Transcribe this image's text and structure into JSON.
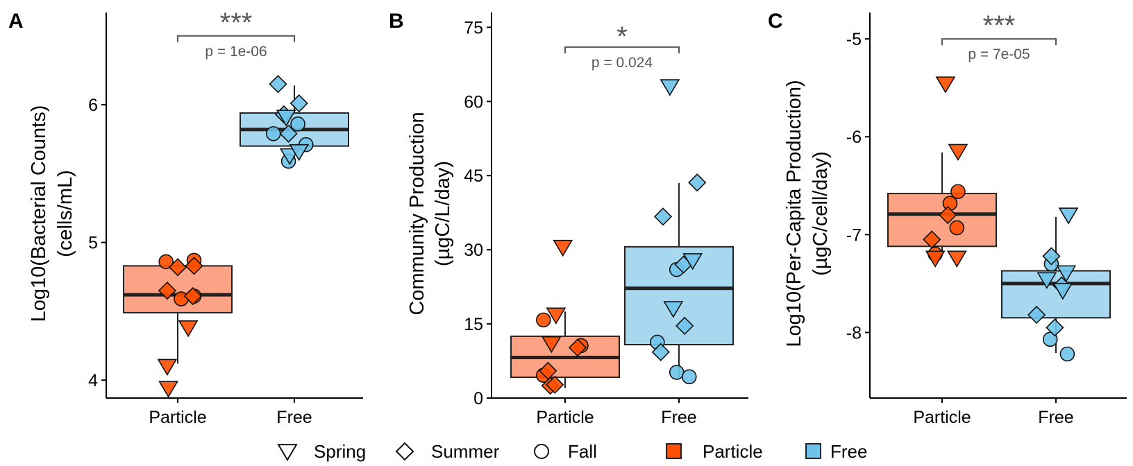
{
  "chart_data": [
    {
      "panel": "A",
      "type": "box",
      "ylabel": [
        "Log10(Bacterial Counts)",
        "(cells/mL)"
      ],
      "ylim": [
        3.87,
        6.67
      ],
      "yticks": [
        4,
        5,
        6
      ],
      "ytick_labels": [
        "4",
        "5",
        "6"
      ],
      "categories": [
        "Particle",
        "Free"
      ],
      "boxes": [
        {
          "category": "Particle",
          "min": 4.12,
          "q1": 4.49,
          "median": 4.62,
          "q3": 4.83,
          "max": 4.86,
          "color": "#FCA285"
        },
        {
          "category": "Free",
          "min": 5.6,
          "q1": 5.7,
          "median": 5.82,
          "q3": 5.94,
          "max": 6.14,
          "color": "#A8D8EF"
        }
      ],
      "points": [
        {
          "category": "Particle",
          "jitter": -0.1,
          "value": 4.86,
          "shape": "circle"
        },
        {
          "category": "Particle",
          "jitter": 0.14,
          "value": 4.87,
          "shape": "circle"
        },
        {
          "category": "Particle",
          "jitter": 0.03,
          "value": 4.59,
          "shape": "circle"
        },
        {
          "category": "Particle",
          "jitter": 0.14,
          "value": 4.61,
          "shape": "circle"
        },
        {
          "category": "Particle",
          "jitter": -0.09,
          "value": 4.65,
          "shape": "diamond"
        },
        {
          "category": "Particle",
          "jitter": 0.0,
          "value": 4.82,
          "shape": "diamond"
        },
        {
          "category": "Particle",
          "jitter": 0.14,
          "value": 4.83,
          "shape": "diamond"
        },
        {
          "category": "Particle",
          "jitter": 0.13,
          "value": 4.61,
          "shape": "diamond"
        },
        {
          "category": "Particle",
          "jitter": 0.09,
          "value": 4.38,
          "shape": "triangle"
        },
        {
          "category": "Particle",
          "jitter": -0.09,
          "value": 4.1,
          "shape": "triangle"
        },
        {
          "category": "Particle",
          "jitter": -0.08,
          "value": 3.94,
          "shape": "triangle"
        },
        {
          "category": "Free",
          "jitter": -0.18,
          "value": 5.79,
          "shape": "circle"
        },
        {
          "category": "Free",
          "jitter": 0.03,
          "value": 5.86,
          "shape": "circle"
        },
        {
          "category": "Free",
          "jitter": 0.1,
          "value": 5.71,
          "shape": "circle"
        },
        {
          "category": "Free",
          "jitter": -0.05,
          "value": 5.59,
          "shape": "circle"
        },
        {
          "category": "Free",
          "jitter": -0.14,
          "value": 6.15,
          "shape": "diamond"
        },
        {
          "category": "Free",
          "jitter": 0.04,
          "value": 6.01,
          "shape": "diamond"
        },
        {
          "category": "Free",
          "jitter": -0.05,
          "value": 5.79,
          "shape": "diamond"
        },
        {
          "category": "Free",
          "jitter": -0.09,
          "value": 5.93,
          "shape": "diamond"
        },
        {
          "category": "Free",
          "jitter": -0.07,
          "value": 5.91,
          "shape": "triangle"
        },
        {
          "category": "Free",
          "jitter": -0.04,
          "value": 5.63,
          "shape": "triangle"
        },
        {
          "category": "Free",
          "jitter": 0.04,
          "value": 5.66,
          "shape": "triangle"
        }
      ],
      "annotation": {
        "stars": "***",
        "p": "p = 1e-06",
        "y": 6.5
      }
    },
    {
      "panel": "B",
      "type": "box",
      "ylabel": [
        "Community Production",
        "(µgC/L/day)"
      ],
      "ylim": [
        0,
        78
      ],
      "yticks": [
        0,
        15,
        30,
        45,
        60,
        75
      ],
      "ytick_labels": [
        "0",
        "15",
        "30",
        "45",
        "60",
        "75"
      ],
      "categories": [
        "Particle",
        "Free"
      ],
      "boxes": [
        {
          "category": "Particle",
          "min": 2,
          "q1": 4.2,
          "median": 8.2,
          "q3": 12.5,
          "max": 17.5,
          "color": "#FCA285"
        },
        {
          "category": "Free",
          "min": 4.2,
          "q1": 10.8,
          "median": 22.2,
          "q3": 30.6,
          "max": 43.5,
          "color": "#A8D8EF"
        }
      ],
      "points": [
        {
          "category": "Particle",
          "jitter": -0.19,
          "value": 15.8,
          "shape": "circle"
        },
        {
          "category": "Particle",
          "jitter": 0.14,
          "value": 10.6,
          "shape": "circle"
        },
        {
          "category": "Particle",
          "jitter": -0.19,
          "value": 4.6,
          "shape": "circle"
        },
        {
          "category": "Particle",
          "jitter": -0.15,
          "value": 5.5,
          "shape": "diamond"
        },
        {
          "category": "Particle",
          "jitter": -0.13,
          "value": 2.5,
          "shape": "diamond"
        },
        {
          "category": "Particle",
          "jitter": -0.09,
          "value": 2.7,
          "shape": "diamond"
        },
        {
          "category": "Particle",
          "jitter": 0.11,
          "value": 10.2,
          "shape": "diamond"
        },
        {
          "category": "Particle",
          "jitter": -0.02,
          "value": 30.5,
          "shape": "triangle"
        },
        {
          "category": "Particle",
          "jitter": -0.08,
          "value": 16.8,
          "shape": "triangle"
        },
        {
          "category": "Particle",
          "jitter": -0.12,
          "value": 11.0,
          "shape": "triangle"
        },
        {
          "category": "Free",
          "jitter": -0.19,
          "value": 11.3,
          "shape": "circle"
        },
        {
          "category": "Free",
          "jitter": -0.02,
          "value": 26.0,
          "shape": "circle"
        },
        {
          "category": "Free",
          "jitter": -0.02,
          "value": 5.2,
          "shape": "circle"
        },
        {
          "category": "Free",
          "jitter": 0.09,
          "value": 4.3,
          "shape": "circle"
        },
        {
          "category": "Free",
          "jitter": -0.14,
          "value": 36.7,
          "shape": "diamond"
        },
        {
          "category": "Free",
          "jitter": 0.16,
          "value": 43.6,
          "shape": "diamond"
        },
        {
          "category": "Free",
          "jitter": 0.05,
          "value": 14.6,
          "shape": "diamond"
        },
        {
          "category": "Free",
          "jitter": -0.16,
          "value": 9.3,
          "shape": "diamond"
        },
        {
          "category": "Free",
          "jitter": 0.04,
          "value": 27.0,
          "shape": "diamond"
        },
        {
          "category": "Free",
          "jitter": -0.08,
          "value": 63.0,
          "shape": "triangle"
        },
        {
          "category": "Free",
          "jitter": 0.12,
          "value": 27.8,
          "shape": "triangle"
        },
        {
          "category": "Free",
          "jitter": -0.05,
          "value": 18.1,
          "shape": "triangle"
        }
      ],
      "annotation": {
        "stars": "*",
        "p": "p = 0.024",
        "y": 71
      }
    },
    {
      "panel": "C",
      "type": "box",
      "ylabel": [
        "Log10(Per-Capita Production)",
        "(µgC/cell/day)"
      ],
      "ylim": [
        -8.67,
        -4.73
      ],
      "yticks": [
        -8,
        -7,
        -6,
        -5
      ],
      "ytick_labels": [
        "-8",
        "-7",
        "-6",
        "-5"
      ],
      "categories": [
        "Particle",
        "Free"
      ],
      "boxes": [
        {
          "category": "Particle",
          "min": -7.2,
          "q1": -7.12,
          "median": -6.79,
          "q3": -6.58,
          "max": -6.16,
          "color": "#FCA285"
        },
        {
          "category": "Free",
          "min": -8.21,
          "q1": -7.85,
          "median": -7.5,
          "q3": -7.37,
          "max": -6.82,
          "color": "#A8D8EF"
        }
      ],
      "points": [
        {
          "category": "Particle",
          "jitter": 0.07,
          "value": -6.68,
          "shape": "circle"
        },
        {
          "category": "Particle",
          "jitter": 0.14,
          "value": -6.56,
          "shape": "circle"
        },
        {
          "category": "Particle",
          "jitter": 0.13,
          "value": -6.93,
          "shape": "circle"
        },
        {
          "category": "Particle",
          "jitter": -0.06,
          "value": -7.2,
          "shape": "circle"
        },
        {
          "category": "Particle",
          "jitter": -0.09,
          "value": -7.05,
          "shape": "diamond"
        },
        {
          "category": "Particle",
          "jitter": 0.05,
          "value": -6.8,
          "shape": "diamond"
        },
        {
          "category": "Particle",
          "jitter": 0.03,
          "value": -5.46,
          "shape": "triangle"
        },
        {
          "category": "Particle",
          "jitter": 0.14,
          "value": -6.15,
          "shape": "triangle"
        },
        {
          "category": "Particle",
          "jitter": -0.06,
          "value": -7.24,
          "shape": "triangle"
        },
        {
          "category": "Particle",
          "jitter": 0.13,
          "value": -7.24,
          "shape": "triangle"
        },
        {
          "category": "Free",
          "jitter": -0.04,
          "value": -7.3,
          "shape": "circle"
        },
        {
          "category": "Free",
          "jitter": -0.05,
          "value": -8.07,
          "shape": "circle"
        },
        {
          "category": "Free",
          "jitter": 0.1,
          "value": -8.22,
          "shape": "circle"
        },
        {
          "category": "Free",
          "jitter": -0.04,
          "value": -7.22,
          "shape": "diamond"
        },
        {
          "category": "Free",
          "jitter": -0.17,
          "value": -7.82,
          "shape": "diamond"
        },
        {
          "category": "Free",
          "jitter": -0.01,
          "value": -7.95,
          "shape": "diamond"
        },
        {
          "category": "Free",
          "jitter": 0.05,
          "value": -7.52,
          "shape": "diamond"
        },
        {
          "category": "Free",
          "jitter": 0.11,
          "value": -6.8,
          "shape": "triangle"
        },
        {
          "category": "Free",
          "jitter": -0.08,
          "value": -7.46,
          "shape": "triangle"
        },
        {
          "category": "Free",
          "jitter": 0.06,
          "value": -7.57,
          "shape": "triangle"
        },
        {
          "category": "Free",
          "jitter": 0.09,
          "value": -7.39,
          "shape": "triangle"
        }
      ],
      "annotation": {
        "stars": "***",
        "p": "p = 7e-05",
        "y": -5.0
      }
    }
  ],
  "colors": {
    "particle_point": "#FF4F00",
    "free_point": "#6EC3EA",
    "particle_box": "#FCA285",
    "free_box": "#A8D8EF",
    "annotation": "#555555"
  },
  "legend": {
    "shape_items": [
      {
        "label": "Spring",
        "shape": "triangle"
      },
      {
        "label": "Summer",
        "shape": "diamond"
      },
      {
        "label": "Fall",
        "shape": "circle"
      }
    ],
    "fill_items": [
      {
        "label": "Particle",
        "color": "#FF4F00"
      },
      {
        "label": "Free",
        "color": "#6EC3EA"
      }
    ]
  }
}
